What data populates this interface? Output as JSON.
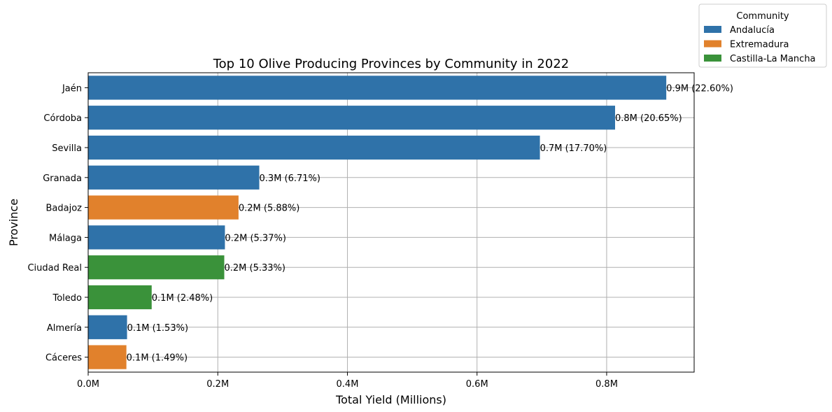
{
  "chart_data": {
    "type": "bar",
    "orientation": "horizontal",
    "title": "Top 10 Olive Producing Provinces by Community in 2022",
    "xlabel": "Total Yield (Millions)",
    "ylabel": "Province",
    "xlim": [
      0,
      0.935
    ],
    "xticks": [
      0,
      0.2,
      0.4,
      0.6,
      0.8
    ],
    "xtick_labels": [
      "0.0M",
      "0.2M",
      "0.4M",
      "0.6M",
      "0.8M"
    ],
    "grid": true,
    "legend": {
      "title": "Community",
      "placement": "top-right",
      "entries": [
        {
          "name": "Andalucía",
          "color": "#2f72a9"
        },
        {
          "name": "Extremadura",
          "color": "#e1812c"
        },
        {
          "name": "Castilla-La Mancha",
          "color": "#3a923a"
        }
      ]
    },
    "bars": [
      {
        "province": "Jaén",
        "community": "Andalucía",
        "value": 0.892,
        "label": "0.9M (22.60%)"
      },
      {
        "province": "Córdoba",
        "community": "Andalucía",
        "value": 0.813,
        "label": "0.8M (20.65%)"
      },
      {
        "province": "Sevilla",
        "community": "Andalucía",
        "value": 0.697,
        "label": "0.7M (17.70%)"
      },
      {
        "province": "Granada",
        "community": "Andalucía",
        "value": 0.264,
        "label": "0.3M (6.71%)"
      },
      {
        "province": "Badajoz",
        "community": "Extremadura",
        "value": 0.232,
        "label": "0.2M (5.88%)"
      },
      {
        "province": "Málaga",
        "community": "Andalucía",
        "value": 0.211,
        "label": "0.2M (5.37%)"
      },
      {
        "province": "Ciudad Real",
        "community": "Castilla-La Mancha",
        "value": 0.21,
        "label": "0.2M (5.33%)"
      },
      {
        "province": "Toledo",
        "community": "Castilla-La Mancha",
        "value": 0.098,
        "label": "0.1M (2.48%)"
      },
      {
        "province": "Almería",
        "community": "Andalucía",
        "value": 0.06,
        "label": "0.1M (1.53%)"
      },
      {
        "province": "Cáceres",
        "community": "Extremadura",
        "value": 0.059,
        "label": "0.1M (1.49%)"
      }
    ]
  }
}
